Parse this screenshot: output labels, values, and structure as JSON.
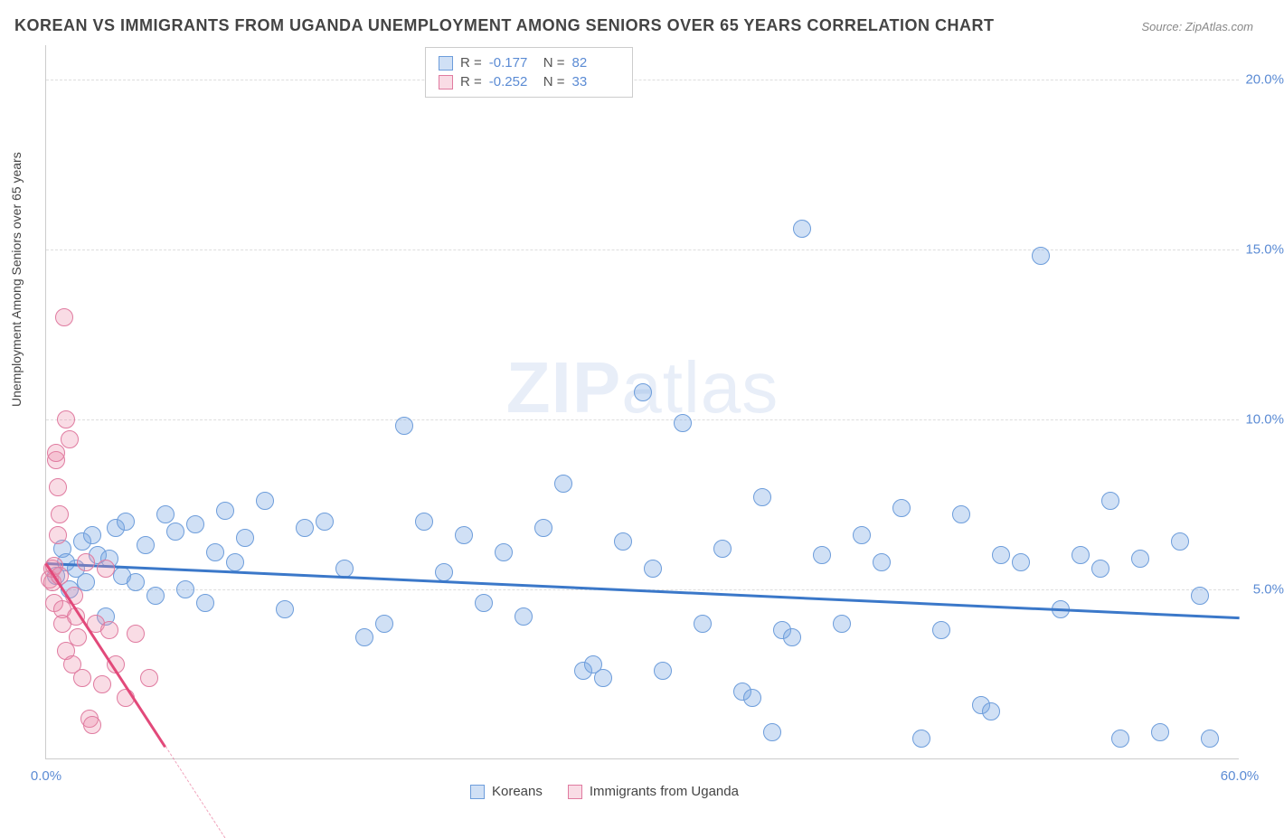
{
  "title": "KOREAN VS IMMIGRANTS FROM UGANDA UNEMPLOYMENT AMONG SENIORS OVER 65 YEARS CORRELATION CHART",
  "source": "Source: ZipAtlas.com",
  "ylabel": "Unemployment Among Seniors over 65 years",
  "watermark_zip": "ZIP",
  "watermark_atlas": "atlas",
  "chart": {
    "type": "scatter",
    "xlim": [
      0,
      60
    ],
    "ylim": [
      0,
      21
    ],
    "xticks": [
      {
        "value": 0,
        "label": "0.0%"
      },
      {
        "value": 60,
        "label": "60.0%"
      }
    ],
    "yticks": [
      {
        "value": 5,
        "label": "5.0%"
      },
      {
        "value": 10,
        "label": "10.0%"
      },
      {
        "value": 15,
        "label": "15.0%"
      },
      {
        "value": 20,
        "label": "20.0%"
      }
    ],
    "grid_color": "#dddddd",
    "background_color": "#ffffff",
    "axis_color": "#cccccc",
    "tick_color": "#5b8bd4",
    "point_radius": 10,
    "point_stroke_width": 1.5
  },
  "series": [
    {
      "name": "Koreans",
      "fill_color": "rgba(120,165,225,0.35)",
      "stroke_color": "#6d9ddb",
      "trend_color": "#3b78c9",
      "R": "-0.177",
      "N": "82",
      "trend": {
        "x1": 0,
        "y1": 5.8,
        "x2": 60,
        "y2": 4.2
      },
      "points": [
        [
          0.5,
          5.4
        ],
        [
          0.8,
          6.2
        ],
        [
          1.0,
          5.8
        ],
        [
          1.2,
          5.0
        ],
        [
          1.5,
          5.6
        ],
        [
          1.8,
          6.4
        ],
        [
          2.0,
          5.2
        ],
        [
          2.3,
          6.6
        ],
        [
          2.6,
          6.0
        ],
        [
          3.0,
          4.2
        ],
        [
          3.2,
          5.9
        ],
        [
          3.5,
          6.8
        ],
        [
          3.8,
          5.4
        ],
        [
          4.0,
          7.0
        ],
        [
          4.5,
          5.2
        ],
        [
          5.0,
          6.3
        ],
        [
          5.5,
          4.8
        ],
        [
          6.0,
          7.2
        ],
        [
          6.5,
          6.7
        ],
        [
          7.0,
          5.0
        ],
        [
          7.5,
          6.9
        ],
        [
          8.0,
          4.6
        ],
        [
          8.5,
          6.1
        ],
        [
          9.0,
          7.3
        ],
        [
          9.5,
          5.8
        ],
        [
          10.0,
          6.5
        ],
        [
          11.0,
          7.6
        ],
        [
          12.0,
          4.4
        ],
        [
          13.0,
          6.8
        ],
        [
          14.0,
          7.0
        ],
        [
          15.0,
          5.6
        ],
        [
          16.0,
          3.6
        ],
        [
          17.0,
          4.0
        ],
        [
          18.0,
          9.8
        ],
        [
          19.0,
          7.0
        ],
        [
          20.0,
          5.5
        ],
        [
          21.0,
          6.6
        ],
        [
          22.0,
          4.6
        ],
        [
          23.0,
          6.1
        ],
        [
          24.0,
          4.2
        ],
        [
          25.0,
          6.8
        ],
        [
          26.0,
          8.1
        ],
        [
          27.0,
          2.6
        ],
        [
          27.5,
          2.8
        ],
        [
          28.0,
          2.4
        ],
        [
          29.0,
          6.4
        ],
        [
          30.0,
          10.8
        ],
        [
          30.5,
          5.6
        ],
        [
          31.0,
          2.6
        ],
        [
          32.0,
          9.9
        ],
        [
          33.0,
          4.0
        ],
        [
          34.0,
          6.2
        ],
        [
          35.0,
          2.0
        ],
        [
          35.5,
          1.8
        ],
        [
          36.0,
          7.7
        ],
        [
          36.5,
          0.8
        ],
        [
          37.0,
          3.8
        ],
        [
          37.5,
          3.6
        ],
        [
          38.0,
          15.6
        ],
        [
          39.0,
          6.0
        ],
        [
          40.0,
          4.0
        ],
        [
          41.0,
          6.6
        ],
        [
          42.0,
          5.8
        ],
        [
          43.0,
          7.4
        ],
        [
          44.0,
          0.6
        ],
        [
          45.0,
          3.8
        ],
        [
          46.0,
          7.2
        ],
        [
          47.0,
          1.6
        ],
        [
          47.5,
          1.4
        ],
        [
          48.0,
          6.0
        ],
        [
          49.0,
          5.8
        ],
        [
          50.0,
          14.8
        ],
        [
          51.0,
          4.4
        ],
        [
          52.0,
          6.0
        ],
        [
          53.0,
          5.6
        ],
        [
          53.5,
          7.6
        ],
        [
          54.0,
          0.6
        ],
        [
          55.0,
          5.9
        ],
        [
          56.0,
          0.8
        ],
        [
          57.0,
          6.4
        ],
        [
          58.0,
          4.8
        ],
        [
          58.5,
          0.6
        ]
      ]
    },
    {
      "name": "Immigrants from Uganda",
      "fill_color": "rgba(235,140,170,0.30)",
      "stroke_color": "#e07ba0",
      "trend_color": "#e2497a",
      "R": "-0.252",
      "N": "33",
      "trend": {
        "x1": 0,
        "y1": 5.8,
        "x2": 6,
        "y2": 0.4
      },
      "trend_dash": {
        "x1": 6,
        "y1": 0.4,
        "x2": 9,
        "y2": -2.3
      },
      "points": [
        [
          0.2,
          5.3
        ],
        [
          0.3,
          5.2
        ],
        [
          0.3,
          5.6
        ],
        [
          0.4,
          4.6
        ],
        [
          0.4,
          5.7
        ],
        [
          0.5,
          8.8
        ],
        [
          0.5,
          9.0
        ],
        [
          0.6,
          8.0
        ],
        [
          0.6,
          6.6
        ],
        [
          0.7,
          5.4
        ],
        [
          0.7,
          7.2
        ],
        [
          0.8,
          4.4
        ],
        [
          0.8,
          4.0
        ],
        [
          0.9,
          13.0
        ],
        [
          1.0,
          10.0
        ],
        [
          1.0,
          3.2
        ],
        [
          1.2,
          9.4
        ],
        [
          1.3,
          2.8
        ],
        [
          1.4,
          4.8
        ],
        [
          1.5,
          4.2
        ],
        [
          1.6,
          3.6
        ],
        [
          1.8,
          2.4
        ],
        [
          2.0,
          5.8
        ],
        [
          2.2,
          1.2
        ],
        [
          2.3,
          1.0
        ],
        [
          2.5,
          4.0
        ],
        [
          2.8,
          2.2
        ],
        [
          3.0,
          5.6
        ],
        [
          3.2,
          3.8
        ],
        [
          3.5,
          2.8
        ],
        [
          4.0,
          1.8
        ],
        [
          4.5,
          3.7
        ],
        [
          5.2,
          2.4
        ]
      ]
    }
  ],
  "legend_top": {
    "r_label": "R =",
    "n_label": "N ="
  },
  "legend_bottom": [
    {
      "label": "Koreans",
      "fill": "rgba(120,165,225,0.35)",
      "stroke": "#6d9ddb"
    },
    {
      "label": "Immigrants from Uganda",
      "fill": "rgba(235,140,170,0.30)",
      "stroke": "#e07ba0"
    }
  ]
}
